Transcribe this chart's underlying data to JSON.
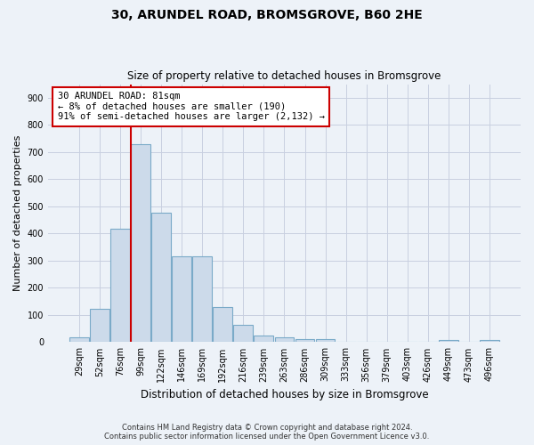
{
  "title_line1": "30, ARUNDEL ROAD, BROMSGROVE, B60 2HE",
  "title_line2": "Size of property relative to detached houses in Bromsgrove",
  "xlabel": "Distribution of detached houses by size in Bromsgrove",
  "ylabel": "Number of detached properties",
  "categories": [
    "29sqm",
    "52sqm",
    "76sqm",
    "99sqm",
    "122sqm",
    "146sqm",
    "169sqm",
    "192sqm",
    "216sqm",
    "239sqm",
    "263sqm",
    "286sqm",
    "309sqm",
    "333sqm",
    "356sqm",
    "379sqm",
    "403sqm",
    "426sqm",
    "449sqm",
    "473sqm",
    "496sqm"
  ],
  "values": [
    18,
    122,
    418,
    730,
    478,
    315,
    315,
    130,
    65,
    25,
    18,
    10,
    10,
    0,
    0,
    0,
    0,
    0,
    7,
    0,
    7
  ],
  "bar_color": "#ccdaea",
  "bar_edge_color": "#7aaac8",
  "property_line_x": 2.5,
  "annotation_text_line1": "30 ARUNDEL ROAD: 81sqm",
  "annotation_text_line2": "← 8% of detached houses are smaller (190)",
  "annotation_text_line3": "91% of semi-detached houses are larger (2,132) →",
  "annotation_box_color": "#ffffff",
  "annotation_box_edge_color": "#cc0000",
  "red_line_color": "#cc0000",
  "grid_color": "#c8cfe0",
  "background_color": "#edf2f8",
  "footer_line1": "Contains HM Land Registry data © Crown copyright and database right 2024.",
  "footer_line2": "Contains public sector information licensed under the Open Government Licence v3.0.",
  "ylim_max": 950,
  "yticks": [
    0,
    100,
    200,
    300,
    400,
    500,
    600,
    700,
    800,
    900
  ],
  "figsize": [
    6.0,
    5.0
  ],
  "dpi": 100
}
